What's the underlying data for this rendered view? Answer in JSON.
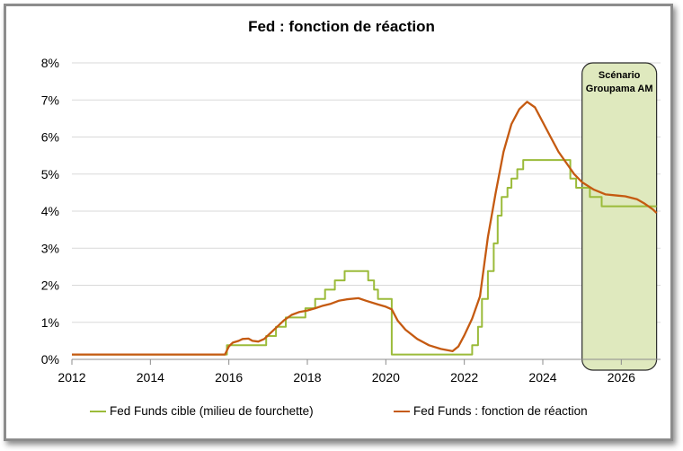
{
  "chart_data": {
    "type": "line",
    "title": "Fed : fonction de réaction",
    "xlabel": "",
    "ylabel": "",
    "xlim": [
      2012,
      2027
    ],
    "ylim": [
      0,
      8
    ],
    "x_ticks": [
      "2012",
      "2014",
      "2016",
      "2018",
      "2020",
      "2022",
      "2024",
      "2026"
    ],
    "y_ticks": [
      "0%",
      "1%",
      "2%",
      "3%",
      "4%",
      "5%",
      "6%",
      "7%",
      "8%"
    ],
    "grid": true,
    "legend_position": "bottom",
    "shaded_region": {
      "label": "Scénario\nGroupama AM",
      "x_start": 2025.0,
      "x_end": 2026.9,
      "color": "#dfe9be"
    },
    "series": [
      {
        "name": "Fed Funds cible (milieu de fourchette)",
        "color": "#9bbb3a",
        "points": [
          [
            2012.0,
            0.13
          ],
          [
            2015.95,
            0.13
          ],
          [
            2015.95,
            0.38
          ],
          [
            2016.95,
            0.38
          ],
          [
            2016.95,
            0.63
          ],
          [
            2017.2,
            0.63
          ],
          [
            2017.2,
            0.88
          ],
          [
            2017.45,
            0.88
          ],
          [
            2017.45,
            1.13
          ],
          [
            2017.95,
            1.13
          ],
          [
            2017.95,
            1.38
          ],
          [
            2018.2,
            1.38
          ],
          [
            2018.2,
            1.63
          ],
          [
            2018.45,
            1.63
          ],
          [
            2018.45,
            1.88
          ],
          [
            2018.7,
            1.88
          ],
          [
            2018.7,
            2.13
          ],
          [
            2018.95,
            2.13
          ],
          [
            2018.95,
            2.38
          ],
          [
            2019.55,
            2.38
          ],
          [
            2019.55,
            2.13
          ],
          [
            2019.7,
            2.13
          ],
          [
            2019.7,
            1.88
          ],
          [
            2019.8,
            1.88
          ],
          [
            2019.8,
            1.63
          ],
          [
            2020.15,
            1.63
          ],
          [
            2020.15,
            0.13
          ],
          [
            2022.2,
            0.13
          ],
          [
            2022.2,
            0.38
          ],
          [
            2022.35,
            0.38
          ],
          [
            2022.35,
            0.88
          ],
          [
            2022.45,
            0.88
          ],
          [
            2022.45,
            1.63
          ],
          [
            2022.6,
            1.63
          ],
          [
            2022.6,
            2.38
          ],
          [
            2022.75,
            2.38
          ],
          [
            2022.75,
            3.13
          ],
          [
            2022.85,
            3.13
          ],
          [
            2022.85,
            3.88
          ],
          [
            2022.95,
            3.88
          ],
          [
            2022.95,
            4.38
          ],
          [
            2023.1,
            4.38
          ],
          [
            2023.1,
            4.63
          ],
          [
            2023.2,
            4.63
          ],
          [
            2023.2,
            4.88
          ],
          [
            2023.35,
            4.88
          ],
          [
            2023.35,
            5.13
          ],
          [
            2023.5,
            5.13
          ],
          [
            2023.5,
            5.38
          ],
          [
            2024.7,
            5.38
          ],
          [
            2024.7,
            4.88
          ],
          [
            2024.85,
            4.88
          ],
          [
            2024.85,
            4.63
          ],
          [
            2025.2,
            4.63
          ],
          [
            2025.2,
            4.38
          ],
          [
            2025.5,
            4.38
          ],
          [
            2025.5,
            4.13
          ],
          [
            2026.9,
            4.13
          ]
        ]
      },
      {
        "name": "Fed Funds : fonction de réaction",
        "color": "#c55a11",
        "points": [
          [
            2012.0,
            0.13
          ],
          [
            2015.9,
            0.13
          ],
          [
            2016.0,
            0.35
          ],
          [
            2016.1,
            0.45
          ],
          [
            2016.25,
            0.5
          ],
          [
            2016.35,
            0.55
          ],
          [
            2016.5,
            0.56
          ],
          [
            2016.6,
            0.5
          ],
          [
            2016.75,
            0.48
          ],
          [
            2016.9,
            0.55
          ],
          [
            2017.0,
            0.65
          ],
          [
            2017.2,
            0.85
          ],
          [
            2017.4,
            1.05
          ],
          [
            2017.6,
            1.2
          ],
          [
            2017.8,
            1.28
          ],
          [
            2018.0,
            1.32
          ],
          [
            2018.2,
            1.38
          ],
          [
            2018.4,
            1.45
          ],
          [
            2018.6,
            1.5
          ],
          [
            2018.8,
            1.58
          ],
          [
            2019.0,
            1.62
          ],
          [
            2019.3,
            1.65
          ],
          [
            2019.5,
            1.58
          ],
          [
            2019.8,
            1.48
          ],
          [
            2020.0,
            1.42
          ],
          [
            2020.15,
            1.35
          ],
          [
            2020.3,
            1.05
          ],
          [
            2020.5,
            0.8
          ],
          [
            2020.8,
            0.55
          ],
          [
            2021.1,
            0.38
          ],
          [
            2021.4,
            0.28
          ],
          [
            2021.7,
            0.22
          ],
          [
            2021.85,
            0.35
          ],
          [
            2022.0,
            0.65
          ],
          [
            2022.2,
            1.1
          ],
          [
            2022.4,
            1.7
          ],
          [
            2022.6,
            3.3
          ],
          [
            2022.8,
            4.5
          ],
          [
            2023.0,
            5.6
          ],
          [
            2023.2,
            6.35
          ],
          [
            2023.4,
            6.75
          ],
          [
            2023.6,
            6.95
          ],
          [
            2023.8,
            6.8
          ],
          [
            2024.0,
            6.4
          ],
          [
            2024.2,
            6.0
          ],
          [
            2024.4,
            5.6
          ],
          [
            2024.6,
            5.3
          ],
          [
            2024.8,
            5.0
          ],
          [
            2025.0,
            4.78
          ],
          [
            2025.3,
            4.58
          ],
          [
            2025.6,
            4.45
          ],
          [
            2025.9,
            4.42
          ],
          [
            2026.1,
            4.4
          ],
          [
            2026.4,
            4.32
          ],
          [
            2026.6,
            4.2
          ],
          [
            2026.8,
            4.05
          ],
          [
            2026.9,
            3.95
          ]
        ]
      }
    ]
  }
}
